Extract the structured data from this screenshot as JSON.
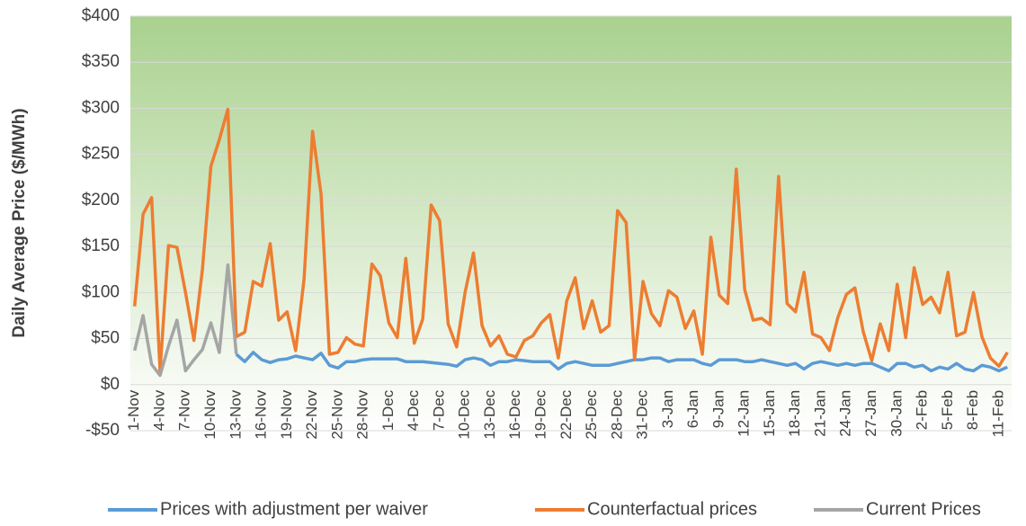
{
  "chart_data": {
    "type": "line",
    "y_label": "Daily Average Price ($/MWh)",
    "categories": [
      "1-Nov",
      null,
      null,
      "4-Nov",
      null,
      null,
      "7-Nov",
      null,
      null,
      "10-Nov",
      null,
      null,
      "13-Nov",
      null,
      null,
      "16-Nov",
      null,
      null,
      "19-Nov",
      null,
      null,
      "22-Nov",
      null,
      null,
      "25-Nov",
      null,
      null,
      "28-Nov",
      null,
      null,
      "1-Dec",
      null,
      null,
      "4-Dec",
      null,
      null,
      "7-Dec",
      null,
      null,
      "10-Dec",
      null,
      null,
      "13-Dec",
      null,
      null,
      "16-Dec",
      null,
      null,
      "19-Dec",
      null,
      null,
      "22-Dec",
      null,
      null,
      "25-Dec",
      null,
      null,
      "28-Dec",
      null,
      null,
      "31-Dec",
      null,
      null,
      "3-Jan",
      null,
      null,
      "6-Jan",
      null,
      null,
      "9-Jan",
      null,
      null,
      "12-Jan",
      null,
      null,
      "15-Jan",
      null,
      null,
      "18-Jan",
      null,
      null,
      "21-Jan",
      null,
      null,
      "24-Jan",
      null,
      null,
      "27-Jan",
      null,
      null,
      "30-Jan",
      null,
      null,
      "2-Feb",
      null,
      null,
      "5-Feb",
      null,
      null,
      "8-Feb",
      null,
      null,
      "11-Feb",
      null
    ],
    "series": [
      {
        "name": "Prices with adjustment per waiver",
        "color": "#5b9bd5",
        "values": [
          null,
          null,
          null,
          null,
          null,
          null,
          null,
          null,
          null,
          null,
          null,
          null,
          33,
          25,
          35,
          27,
          24,
          27,
          28,
          31,
          29,
          27,
          34,
          21,
          18,
          25,
          25,
          27,
          28,
          28,
          28,
          28,
          25,
          25,
          25,
          24,
          23,
          22,
          20,
          27,
          29,
          27,
          21,
          25,
          25,
          27,
          26,
          25,
          25,
          25,
          17,
          23,
          25,
          23,
          21,
          21,
          21,
          23,
          25,
          27,
          27,
          29,
          29,
          25,
          27,
          27,
          27,
          23,
          21,
          27,
          27,
          27,
          25,
          25,
          27,
          25,
          23,
          21,
          23,
          17,
          23,
          25,
          23,
          21,
          23,
          21,
          23,
          23,
          19,
          15,
          23,
          23,
          19,
          21,
          15,
          19,
          17,
          23,
          17,
          15,
          21,
          19,
          15,
          19
        ]
      },
      {
        "name": "Counterfactual prices",
        "color": "#ed7d31",
        "values": [
          85,
          185,
          203,
          15,
          151,
          149,
          100,
          48,
          125,
          237,
          266,
          299,
          52,
          57,
          112,
          107,
          153,
          70,
          79,
          37,
          115,
          275,
          207,
          33,
          35,
          51,
          44,
          42,
          131,
          118,
          67,
          51,
          137,
          45,
          71,
          195,
          178,
          66,
          41,
          100,
          143,
          64,
          42,
          53,
          33,
          30,
          48,
          53,
          67,
          76,
          29,
          91,
          116,
          61,
          91,
          57,
          64,
          189,
          176,
          27,
          112,
          77,
          64,
          102,
          95,
          61,
          80,
          33,
          160,
          97,
          88,
          234,
          103,
          70,
          72,
          65,
          226,
          88,
          79,
          122,
          55,
          51,
          37,
          73,
          98,
          105,
          57,
          26,
          66,
          37,
          109,
          51,
          127,
          87,
          95,
          78,
          122,
          53,
          57,
          100,
          52,
          29,
          20,
          35
        ]
      },
      {
        "name": "Current Prices",
        "color": "#a5a5a5",
        "values": [
          37,
          75,
          22,
          10,
          42,
          70,
          15,
          27,
          38,
          67,
          35,
          130,
          33,
          null,
          null,
          null,
          null,
          null,
          null,
          null,
          null,
          null,
          null,
          null,
          null,
          null,
          null,
          null,
          null,
          null,
          null,
          null,
          null,
          null,
          null,
          null,
          null,
          null,
          null,
          null,
          null,
          null,
          null,
          null,
          null,
          null,
          null,
          null,
          null,
          null,
          null,
          null,
          null,
          null,
          null,
          null,
          null,
          null,
          null,
          null,
          null,
          null,
          null,
          null,
          null,
          null,
          null,
          null,
          null,
          null,
          null,
          null,
          null,
          null,
          null,
          null,
          null,
          null,
          null,
          null,
          null,
          null,
          null,
          null,
          null,
          null,
          null,
          null,
          null,
          null,
          null,
          null,
          null,
          null,
          null,
          null,
          null,
          null,
          null,
          null,
          null,
          null,
          null,
          null
        ]
      }
    ],
    "ylim": [
      -50,
      400
    ],
    "yticks": [
      {
        "value": -50,
        "label": "-$50"
      },
      {
        "value": 0,
        "label": "$0"
      },
      {
        "value": 50,
        "label": "$50"
      },
      {
        "value": 100,
        "label": "$100"
      },
      {
        "value": 150,
        "label": "$150"
      },
      {
        "value": 200,
        "label": "$200"
      },
      {
        "value": 250,
        "label": "$250"
      },
      {
        "value": 300,
        "label": "$300"
      },
      {
        "value": 350,
        "label": "$350"
      },
      {
        "value": 400,
        "label": "$400"
      }
    ],
    "grid": true,
    "legend": "bottom"
  }
}
